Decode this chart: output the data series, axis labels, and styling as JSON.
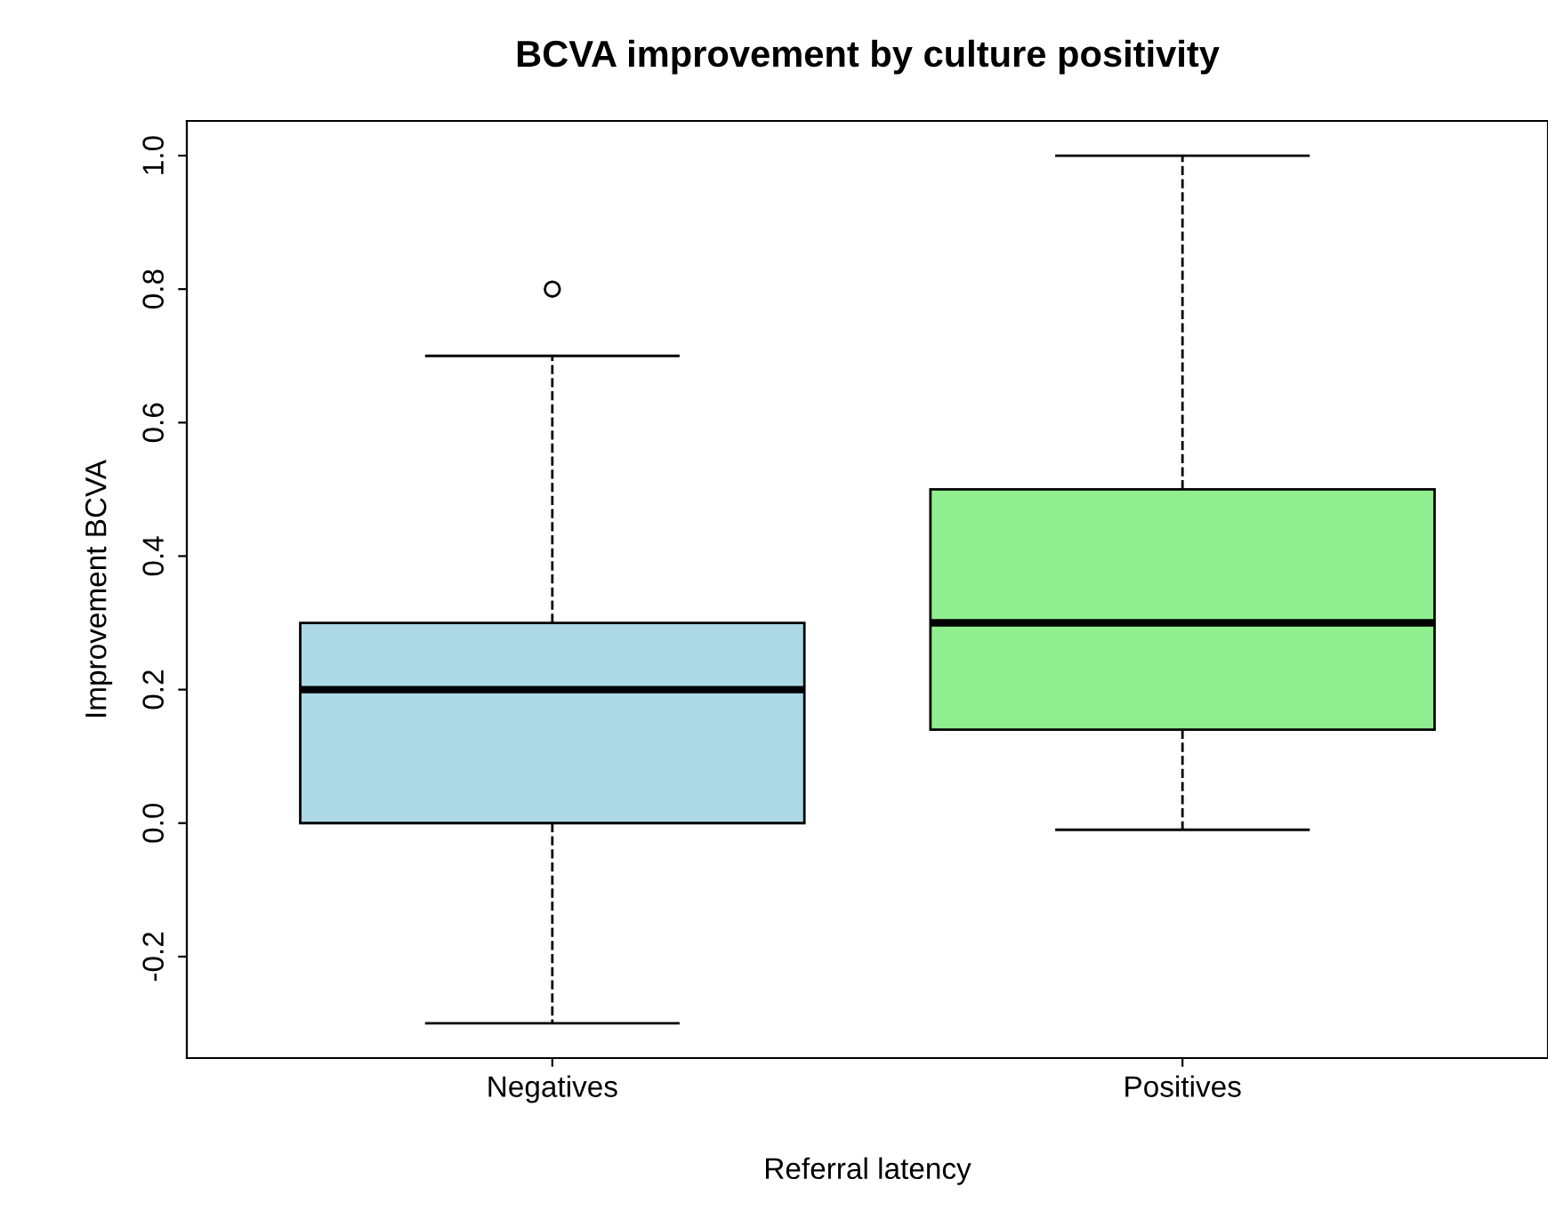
{
  "chart_data": {
    "type": "box",
    "title": "BCVA improvement by culture positivity",
    "xlabel": "Referral latency",
    "ylabel": "Improvement BCVA",
    "categories": [
      "Negatives",
      "Positives"
    ],
    "boxes": [
      {
        "low": -0.3,
        "q1": 0.0,
        "median": 0.2,
        "q3": 0.3,
        "high": 0.7,
        "outliers": [
          0.8
        ]
      },
      {
        "low": -0.01,
        "q1": 0.14,
        "median": 0.3,
        "q3": 0.5,
        "high": 1.0
      }
    ],
    "colors": [
      "#add8e6",
      "#90ee90"
    ],
    "ylim": [
      -0.352,
      1.052
    ],
    "yticks": [
      {
        "value": -0.2,
        "label": "-0.2"
      },
      {
        "value": 0,
        "label": "0.0"
      },
      {
        "value": 0.2,
        "label": "0.2"
      },
      {
        "value": 0.4,
        "label": "0.4"
      },
      {
        "value": 0.6,
        "label": "0.6"
      },
      {
        "value": 0.8,
        "label": "0.8"
      },
      {
        "value": 1,
        "label": "1.0"
      }
    ],
    "line_style": "dashed"
  }
}
